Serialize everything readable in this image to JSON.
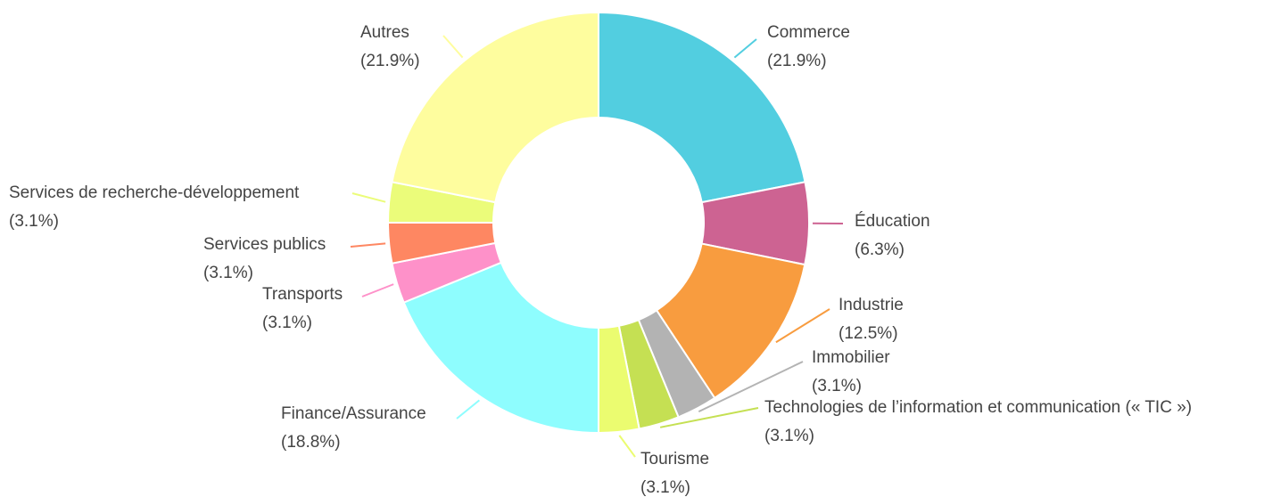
{
  "chart_data": {
    "type": "donut",
    "categories": [
      "Commerce",
      "Éducation",
      "Industrie",
      "Immobilier",
      "Technologies de l’information et communication (« TIC »)",
      "Tourisme",
      "Finance/Assurance",
      "Transports",
      "Services publics",
      "Services de recherche-développement",
      "Autres"
    ],
    "values": [
      21.9,
      6.3,
      12.5,
      3.1,
      3.1,
      3.1,
      18.8,
      3.1,
      3.1,
      3.1,
      21.9
    ],
    "value_labels": [
      "(21.9%)",
      "(6.3%)",
      "(12.5%)",
      "(3.1%)",
      "(3.1%)",
      "(3.1%)",
      "(18.8%)",
      "(3.1%)",
      "(3.1%)",
      "(3.1%)",
      "(21.9%)"
    ],
    "colors": [
      "#52cee0",
      "#cd6392",
      "#f89c3f",
      "#b3b3b3",
      "#c5e053",
      "#ebfc70",
      "#8efdfe",
      "#fe91c9",
      "#fe8762",
      "#ebfc7a",
      "#fefd9e"
    ]
  }
}
